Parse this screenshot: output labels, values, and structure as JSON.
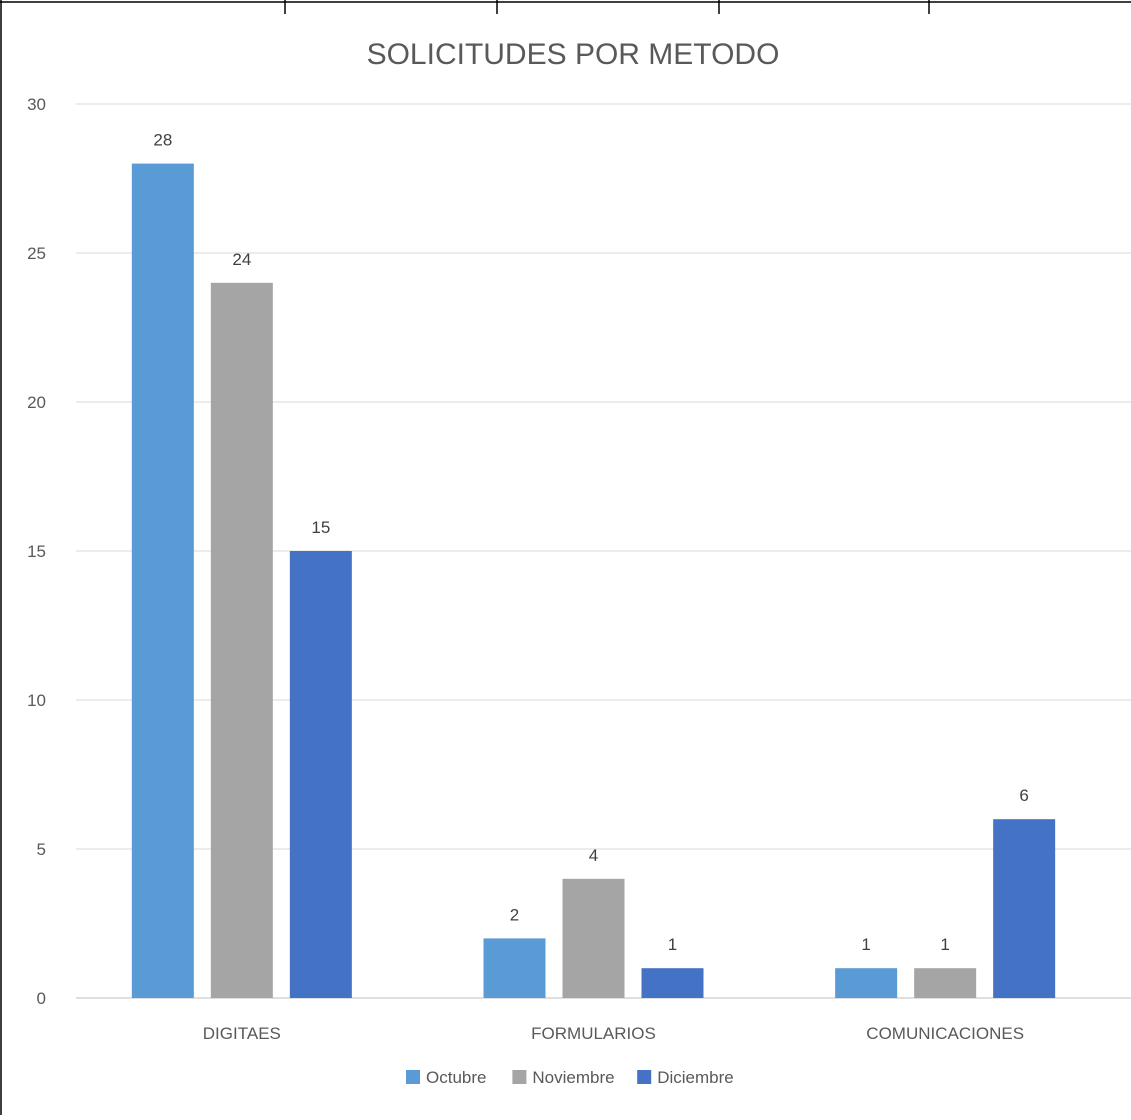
{
  "chart_data": {
    "type": "bar",
    "title": "SOLICITUDES POR METODO",
    "xlabel": "",
    "ylabel": "",
    "categories": [
      "DIGITAES",
      "FORMULARIOS",
      "COMUNICACIONES"
    ],
    "series": [
      {
        "name": "Octubre",
        "values": [
          28,
          2,
          1
        ],
        "color": "#5B9BD5"
      },
      {
        "name": "Noviembre",
        "values": [
          24,
          4,
          1
        ],
        "color": "#A5A5A5"
      },
      {
        "name": "Diciembre",
        "values": [
          15,
          1,
          6
        ],
        "color": "#4472C4"
      }
    ],
    "ylim": [
      0,
      30
    ],
    "yticks": [
      0,
      5,
      10,
      15,
      20,
      25,
      30
    ],
    "grid": true,
    "legend_position": "bottom",
    "data_labels": true
  }
}
